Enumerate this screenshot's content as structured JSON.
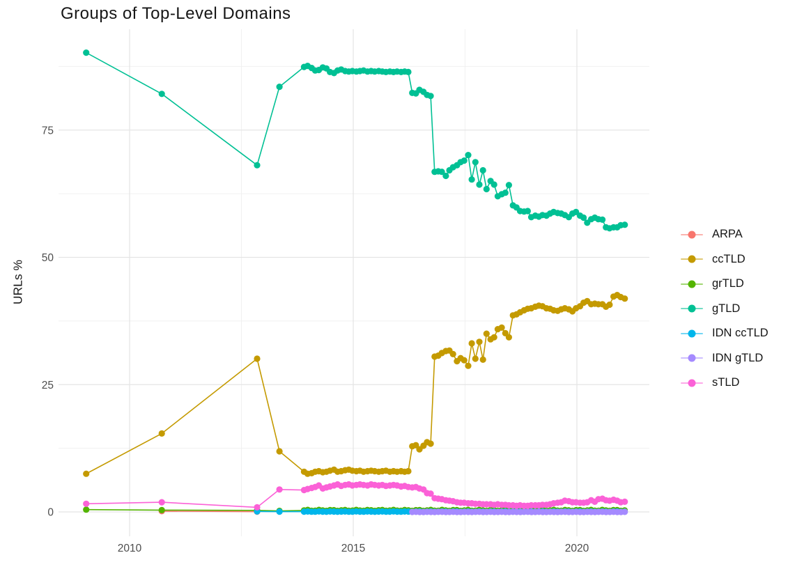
{
  "chart_data": {
    "type": "line",
    "title": "Groups of Top-Level Domains",
    "xlabel": "",
    "ylabel": "URLs %",
    "grid": true,
    "legend_position": "right",
    "xlim": [
      2008.45,
      2021.66
    ],
    "ylim": [
      -4.8,
      94.5
    ],
    "x_ticks": {
      "values": [
        2010,
        2015,
        2020
      ],
      "labels": [
        "2010",
        "2015",
        "2020"
      ]
    },
    "y_ticks": {
      "values": [
        0,
        25,
        50,
        75
      ],
      "labels": [
        "0",
        "25",
        "50",
        "75"
      ]
    },
    "x_minor": [
      2012.5,
      2017.5
    ],
    "y_minor": [
      12.5,
      37.5,
      62.5,
      87.5
    ],
    "colors": {
      "major_grid": "#e4e4e4",
      "minor_grid": "#f0f0f0",
      "axis_text": "#4d4d4d",
      "title_text": "#161616"
    },
    "series": [
      {
        "name": "ARPA",
        "color": "#F8766D",
        "points": [
          [
            2010.72,
            0.15
          ],
          [
            2012.85,
            0.05
          ]
        ]
      },
      {
        "name": "ccTLD",
        "color": "#C49A00",
        "points": [
          [
            2009.03,
            7.5
          ],
          [
            2010.72,
            15.4
          ],
          [
            2012.85,
            30.1
          ],
          [
            2013.35,
            11.9
          ],
          [
            2013.9,
            7.9
          ],
          [
            2013.98,
            7.5
          ],
          [
            2014.07,
            7.6
          ],
          [
            2014.15,
            7.9
          ],
          [
            2014.23,
            8.0
          ],
          [
            2014.32,
            7.8
          ],
          [
            2014.4,
            7.9
          ],
          [
            2014.48,
            8.1
          ],
          [
            2014.57,
            8.3
          ],
          [
            2014.65,
            7.9
          ],
          [
            2014.73,
            8.0
          ],
          [
            2014.82,
            8.2
          ],
          [
            2014.9,
            8.3
          ],
          [
            2014.98,
            8.1
          ],
          [
            2015.07,
            8.0
          ],
          [
            2015.15,
            8.1
          ],
          [
            2015.23,
            7.9
          ],
          [
            2015.32,
            8.0
          ],
          [
            2015.4,
            8.1
          ],
          [
            2015.48,
            8.0
          ],
          [
            2015.57,
            7.9
          ],
          [
            2015.65,
            8.0
          ],
          [
            2015.73,
            8.1
          ],
          [
            2015.82,
            7.9
          ],
          [
            2015.9,
            8.0
          ],
          [
            2015.98,
            7.9
          ],
          [
            2016.07,
            8.0
          ],
          [
            2016.15,
            7.9
          ],
          [
            2016.23,
            8.0
          ],
          [
            2016.32,
            12.9
          ],
          [
            2016.4,
            13.1
          ],
          [
            2016.48,
            12.3
          ],
          [
            2016.57,
            13.0
          ],
          [
            2016.65,
            13.7
          ],
          [
            2016.73,
            13.4
          ],
          [
            2016.82,
            30.5
          ],
          [
            2016.9,
            30.7
          ],
          [
            2016.98,
            31.2
          ],
          [
            2017.07,
            31.6
          ],
          [
            2017.15,
            31.7
          ],
          [
            2017.23,
            31.0
          ],
          [
            2017.32,
            29.6
          ],
          [
            2017.4,
            30.2
          ],
          [
            2017.48,
            29.8
          ],
          [
            2017.57,
            28.7
          ],
          [
            2017.65,
            33.1
          ],
          [
            2017.73,
            30.1
          ],
          [
            2017.82,
            33.4
          ],
          [
            2017.9,
            29.9
          ],
          [
            2017.98,
            35.0
          ],
          [
            2018.07,
            33.9
          ],
          [
            2018.15,
            34.3
          ],
          [
            2018.23,
            35.9
          ],
          [
            2018.32,
            36.2
          ],
          [
            2018.4,
            35.1
          ],
          [
            2018.48,
            34.3
          ],
          [
            2018.57,
            38.6
          ],
          [
            2018.65,
            38.8
          ],
          [
            2018.73,
            39.2
          ],
          [
            2018.82,
            39.6
          ],
          [
            2018.9,
            39.9
          ],
          [
            2018.98,
            40.0
          ],
          [
            2019.07,
            40.3
          ],
          [
            2019.15,
            40.5
          ],
          [
            2019.23,
            40.4
          ],
          [
            2019.32,
            40.0
          ],
          [
            2019.4,
            39.9
          ],
          [
            2019.48,
            39.6
          ],
          [
            2019.57,
            39.5
          ],
          [
            2019.65,
            39.8
          ],
          [
            2019.73,
            40.0
          ],
          [
            2019.82,
            39.8
          ],
          [
            2019.9,
            39.4
          ],
          [
            2019.98,
            40.0
          ],
          [
            2020.07,
            40.4
          ],
          [
            2020.15,
            41.1
          ],
          [
            2020.23,
            41.4
          ],
          [
            2020.32,
            40.8
          ],
          [
            2020.4,
            40.9
          ],
          [
            2020.48,
            40.8
          ],
          [
            2020.57,
            40.8
          ],
          [
            2020.65,
            40.3
          ],
          [
            2020.73,
            40.7
          ],
          [
            2020.82,
            42.3
          ],
          [
            2020.9,
            42.6
          ],
          [
            2020.98,
            42.2
          ],
          [
            2021.07,
            41.9
          ]
        ]
      },
      {
        "name": "grTLD",
        "color": "#53B400",
        "points": [
          [
            2009.03,
            0.45
          ],
          [
            2010.72,
            0.35
          ],
          [
            2012.85,
            0.3
          ],
          [
            2013.35,
            0.2
          ]
        ],
        "flat": {
          "from": 2013.9,
          "to": 2021.07,
          "value": 0.3,
          "wiggle": 0.1
        }
      },
      {
        "name": "gTLD",
        "color": "#00C094",
        "points": [
          [
            2009.03,
            90.2
          ],
          [
            2010.72,
            82.1
          ],
          [
            2012.85,
            68.1
          ],
          [
            2013.35,
            83.5
          ],
          [
            2013.9,
            87.4
          ],
          [
            2013.98,
            87.6
          ],
          [
            2014.07,
            87.2
          ],
          [
            2014.15,
            86.7
          ],
          [
            2014.23,
            86.8
          ],
          [
            2014.32,
            87.3
          ],
          [
            2014.4,
            87.1
          ],
          [
            2014.48,
            86.4
          ],
          [
            2014.57,
            86.2
          ],
          [
            2014.65,
            86.7
          ],
          [
            2014.73,
            86.9
          ],
          [
            2014.82,
            86.6
          ],
          [
            2014.9,
            86.5
          ],
          [
            2014.98,
            86.6
          ],
          [
            2015.07,
            86.5
          ],
          [
            2015.15,
            86.6
          ],
          [
            2015.23,
            86.7
          ],
          [
            2015.32,
            86.5
          ],
          [
            2015.4,
            86.6
          ],
          [
            2015.48,
            86.5
          ],
          [
            2015.57,
            86.6
          ],
          [
            2015.65,
            86.5
          ],
          [
            2015.73,
            86.4
          ],
          [
            2015.82,
            86.5
          ],
          [
            2015.9,
            86.4
          ],
          [
            2015.98,
            86.5
          ],
          [
            2016.07,
            86.4
          ],
          [
            2016.15,
            86.5
          ],
          [
            2016.23,
            86.4
          ],
          [
            2016.32,
            82.3
          ],
          [
            2016.4,
            82.2
          ],
          [
            2016.48,
            82.9
          ],
          [
            2016.57,
            82.5
          ],
          [
            2016.65,
            81.9
          ],
          [
            2016.73,
            81.7
          ],
          [
            2016.82,
            66.8
          ],
          [
            2016.9,
            66.9
          ],
          [
            2016.98,
            66.8
          ],
          [
            2017.07,
            66.0
          ],
          [
            2017.15,
            67.1
          ],
          [
            2017.23,
            67.7
          ],
          [
            2017.32,
            68.1
          ],
          [
            2017.4,
            68.7
          ],
          [
            2017.48,
            69.0
          ],
          [
            2017.57,
            70.1
          ],
          [
            2017.65,
            65.3
          ],
          [
            2017.73,
            68.7
          ],
          [
            2017.82,
            64.3
          ],
          [
            2017.9,
            67.1
          ],
          [
            2017.98,
            63.4
          ],
          [
            2018.07,
            65.0
          ],
          [
            2018.15,
            64.3
          ],
          [
            2018.23,
            62.0
          ],
          [
            2018.32,
            62.4
          ],
          [
            2018.4,
            62.7
          ],
          [
            2018.48,
            64.2
          ],
          [
            2018.57,
            60.2
          ],
          [
            2018.65,
            59.8
          ],
          [
            2018.73,
            59.1
          ],
          [
            2018.82,
            59.0
          ],
          [
            2018.9,
            59.1
          ],
          [
            2018.98,
            57.9
          ],
          [
            2019.07,
            58.2
          ],
          [
            2019.15,
            58.0
          ],
          [
            2019.23,
            58.3
          ],
          [
            2019.32,
            58.2
          ],
          [
            2019.4,
            58.6
          ],
          [
            2019.48,
            58.9
          ],
          [
            2019.57,
            58.7
          ],
          [
            2019.65,
            58.6
          ],
          [
            2019.73,
            58.3
          ],
          [
            2019.82,
            57.9
          ],
          [
            2019.9,
            58.6
          ],
          [
            2019.98,
            58.9
          ],
          [
            2020.07,
            58.2
          ],
          [
            2020.15,
            57.8
          ],
          [
            2020.23,
            56.8
          ],
          [
            2020.32,
            57.5
          ],
          [
            2020.4,
            57.8
          ],
          [
            2020.48,
            57.5
          ],
          [
            2020.57,
            57.4
          ],
          [
            2020.65,
            55.9
          ],
          [
            2020.73,
            55.7
          ],
          [
            2020.82,
            55.9
          ],
          [
            2020.9,
            55.9
          ],
          [
            2020.98,
            56.3
          ],
          [
            2021.07,
            56.4
          ]
        ]
      },
      {
        "name": "IDN ccTLD",
        "color": "#00B6EB",
        "points": [
          [
            2012.85,
            0.1
          ],
          [
            2013.35,
            0.06
          ]
        ],
        "flat": {
          "from": 2013.9,
          "to": 2021.07,
          "value": 0.06,
          "wiggle": 0.03
        }
      },
      {
        "name": "IDN gTLD",
        "color": "#A58AFF",
        "points": [],
        "flat": {
          "from": 2016.32,
          "to": 2021.07,
          "value": 0.0,
          "wiggle": 0.02
        }
      },
      {
        "name": "sTLD",
        "color": "#FB61D7",
        "points": [
          [
            2009.03,
            1.6
          ],
          [
            2010.72,
            1.9
          ],
          [
            2012.85,
            0.9
          ],
          [
            2013.35,
            4.4
          ],
          [
            2013.9,
            4.3
          ],
          [
            2013.98,
            4.5
          ],
          [
            2014.07,
            4.7
          ],
          [
            2014.15,
            4.9
          ],
          [
            2014.23,
            5.2
          ],
          [
            2014.32,
            4.6
          ],
          [
            2014.4,
            4.8
          ],
          [
            2014.48,
            5.0
          ],
          [
            2014.57,
            5.2
          ],
          [
            2014.65,
            5.4
          ],
          [
            2014.73,
            5.1
          ],
          [
            2014.82,
            5.3
          ],
          [
            2014.9,
            5.4
          ],
          [
            2014.98,
            5.2
          ],
          [
            2015.07,
            5.3
          ],
          [
            2015.15,
            5.4
          ],
          [
            2015.23,
            5.3
          ],
          [
            2015.32,
            5.2
          ],
          [
            2015.4,
            5.4
          ],
          [
            2015.48,
            5.3
          ],
          [
            2015.57,
            5.2
          ],
          [
            2015.65,
            5.3
          ],
          [
            2015.73,
            5.1
          ],
          [
            2015.82,
            5.2
          ],
          [
            2015.9,
            5.3
          ],
          [
            2015.98,
            5.2
          ],
          [
            2016.07,
            5.0
          ],
          [
            2016.15,
            5.1
          ],
          [
            2016.23,
            4.9
          ],
          [
            2016.32,
            4.8
          ],
          [
            2016.4,
            4.9
          ],
          [
            2016.48,
            4.6
          ],
          [
            2016.57,
            4.4
          ],
          [
            2016.65,
            3.7
          ],
          [
            2016.73,
            3.6
          ],
          [
            2016.82,
            2.7
          ],
          [
            2016.9,
            2.6
          ],
          [
            2016.98,
            2.5
          ],
          [
            2017.07,
            2.3
          ],
          [
            2017.15,
            2.2
          ],
          [
            2017.23,
            2.1
          ],
          [
            2017.32,
            1.9
          ],
          [
            2017.4,
            1.8
          ],
          [
            2017.48,
            1.8
          ],
          [
            2017.57,
            1.7
          ],
          [
            2017.65,
            1.7
          ],
          [
            2017.73,
            1.6
          ],
          [
            2017.82,
            1.6
          ],
          [
            2017.9,
            1.5
          ],
          [
            2017.98,
            1.5
          ],
          [
            2018.07,
            1.5
          ],
          [
            2018.15,
            1.4
          ],
          [
            2018.23,
            1.5
          ],
          [
            2018.32,
            1.4
          ],
          [
            2018.4,
            1.4
          ],
          [
            2018.48,
            1.3
          ],
          [
            2018.57,
            1.3
          ],
          [
            2018.65,
            1.2
          ],
          [
            2018.73,
            1.3
          ],
          [
            2018.82,
            1.2
          ],
          [
            2018.9,
            1.2
          ],
          [
            2018.98,
            1.3
          ],
          [
            2019.07,
            1.3
          ],
          [
            2019.15,
            1.3
          ],
          [
            2019.23,
            1.4
          ],
          [
            2019.32,
            1.4
          ],
          [
            2019.4,
            1.5
          ],
          [
            2019.48,
            1.7
          ],
          [
            2019.57,
            1.8
          ],
          [
            2019.65,
            1.9
          ],
          [
            2019.73,
            2.2
          ],
          [
            2019.82,
            2.1
          ],
          [
            2019.9,
            1.9
          ],
          [
            2019.98,
            1.9
          ],
          [
            2020.07,
            1.8
          ],
          [
            2020.15,
            1.8
          ],
          [
            2020.23,
            1.9
          ],
          [
            2020.32,
            2.3
          ],
          [
            2020.4,
            2.0
          ],
          [
            2020.48,
            2.5
          ],
          [
            2020.57,
            2.6
          ],
          [
            2020.65,
            2.3
          ],
          [
            2020.73,
            2.2
          ],
          [
            2020.82,
            2.4
          ],
          [
            2020.9,
            2.2
          ],
          [
            2020.98,
            1.9
          ],
          [
            2021.07,
            2.0
          ]
        ]
      }
    ]
  }
}
